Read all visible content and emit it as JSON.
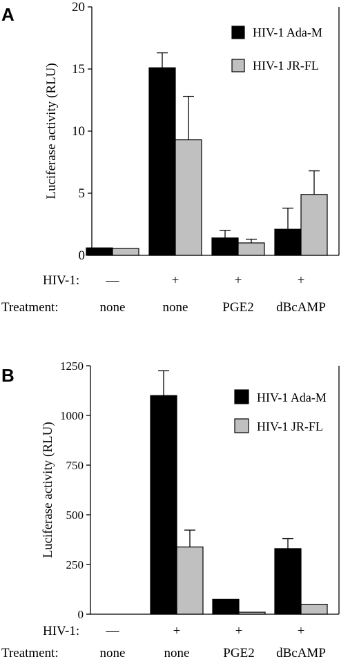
{
  "colors": {
    "series1": "#000000",
    "series2": "#c0c0c0",
    "axis": "#000000"
  },
  "chart_data": [
    {
      "type": "bar",
      "panel": "A",
      "ylabel": "Luciferase activity (RLU)",
      "ylim": [
        0,
        20
      ],
      "yticks": [
        0,
        5,
        10,
        15,
        20
      ],
      "categories": [
        "none",
        "none",
        "PGE2",
        "dBcAMP"
      ],
      "hiv_row": {
        "label": "HIV-1:",
        "values": [
          "—",
          "+",
          "+",
          "+"
        ]
      },
      "treatment_row": {
        "label": "Treatment:",
        "values": [
          "none",
          "none",
          "PGE2",
          "dBcAMP"
        ]
      },
      "legend_position": "top-right",
      "series": [
        {
          "name": "HIV-1 Ada-M",
          "color": "#000000",
          "values": [
            0.6,
            15.1,
            1.4,
            2.1
          ],
          "errors": [
            0,
            1.2,
            0.6,
            1.7
          ]
        },
        {
          "name": "HIV-1 JR-FL",
          "color": "#c0c0c0",
          "values": [
            0.55,
            9.3,
            1.0,
            4.9
          ],
          "errors": [
            0,
            3.5,
            0.3,
            1.9
          ]
        }
      ]
    },
    {
      "type": "bar",
      "panel": "B",
      "ylabel": "Luciferase activity (RLU)",
      "ylim": [
        0,
        1250
      ],
      "yticks": [
        0,
        250,
        500,
        750,
        1000,
        1250
      ],
      "categories": [
        "none",
        "none",
        "PGE2",
        "dBcAMP"
      ],
      "hiv_row": {
        "label": "HIV-1:",
        "values": [
          "—",
          "+",
          "+",
          "+"
        ]
      },
      "treatment_row": {
        "label": "Treatment:",
        "values": [
          "none",
          "none",
          "PGE2",
          "dBcAMP"
        ]
      },
      "legend_position": "top-right",
      "series": [
        {
          "name": "HIV-1 Ada-M",
          "color": "#000000",
          "values": [
            0,
            1100,
            75,
            330
          ],
          "errors": [
            0,
            125,
            0,
            50
          ]
        },
        {
          "name": "HIV-1 JR-FL",
          "color": "#c0c0c0",
          "values": [
            0,
            338,
            10,
            50
          ],
          "errors": [
            0,
            85,
            0,
            0
          ]
        }
      ]
    }
  ]
}
